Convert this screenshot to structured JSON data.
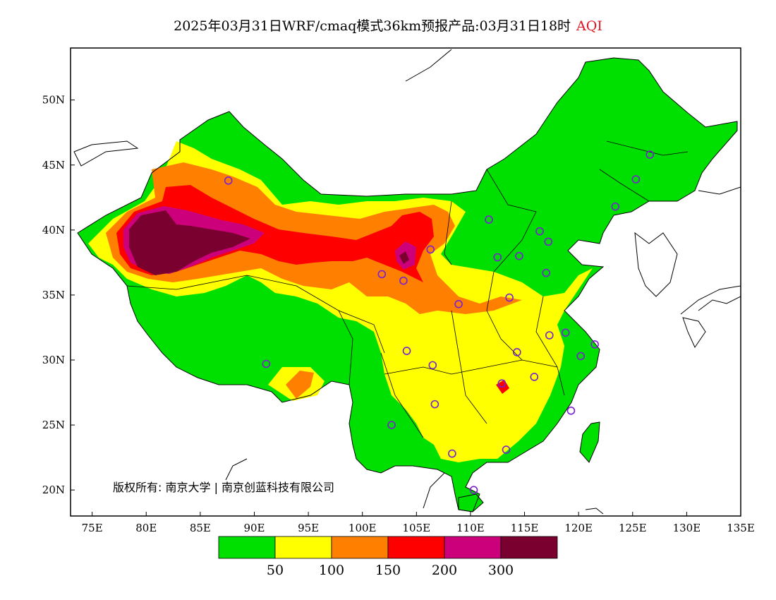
{
  "title": {
    "main": "2025年03月31日WRF/cmaq模式36km预报产品:03月31日18时",
    "variable": "AQI"
  },
  "map": {
    "lon_range": [
      73,
      135
    ],
    "lat_range": [
      18,
      54
    ],
    "lon_ticks": [
      "75E",
      "80E",
      "85E",
      "90E",
      "95E",
      "100E",
      "105E",
      "110E",
      "115E",
      "120E",
      "125E",
      "130E",
      "135E"
    ],
    "lat_ticks": [
      "20N",
      "25N",
      "30N",
      "35N",
      "40N",
      "45N",
      "50N"
    ],
    "copyright": "版权所有: 南京大学 | 南京创蓝科技有限公司"
  },
  "colorbar": {
    "colors": [
      "#00e000",
      "#ffff00",
      "#ff8000",
      "#ff0000",
      "#cc007a",
      "#7a0030"
    ],
    "labels": [
      "50",
      "100",
      "150",
      "200",
      "300"
    ]
  },
  "stations": [
    {
      "lon": 126.6,
      "lat": 45.8
    },
    {
      "lon": 125.3,
      "lat": 43.9
    },
    {
      "lon": 123.4,
      "lat": 41.8
    },
    {
      "lon": 87.6,
      "lat": 43.8
    },
    {
      "lon": 111.7,
      "lat": 40.8
    },
    {
      "lon": 116.4,
      "lat": 39.9
    },
    {
      "lon": 117.2,
      "lat": 39.1
    },
    {
      "lon": 106.3,
      "lat": 38.5
    },
    {
      "lon": 114.5,
      "lat": 38.0
    },
    {
      "lon": 112.5,
      "lat": 37.9
    },
    {
      "lon": 117.0,
      "lat": 36.7
    },
    {
      "lon": 101.8,
      "lat": 36.6
    },
    {
      "lon": 103.8,
      "lat": 36.1
    },
    {
      "lon": 108.9,
      "lat": 34.3
    },
    {
      "lon": 113.6,
      "lat": 34.8
    },
    {
      "lon": 117.3,
      "lat": 31.9
    },
    {
      "lon": 118.8,
      "lat": 32.1
    },
    {
      "lon": 121.5,
      "lat": 31.2
    },
    {
      "lon": 120.2,
      "lat": 30.3
    },
    {
      "lon": 114.3,
      "lat": 30.6
    },
    {
      "lon": 104.1,
      "lat": 30.7
    },
    {
      "lon": 106.5,
      "lat": 29.6
    },
    {
      "lon": 91.1,
      "lat": 29.7
    },
    {
      "lon": 115.9,
      "lat": 28.7
    },
    {
      "lon": 112.9,
      "lat": 28.2
    },
    {
      "lon": 106.7,
      "lat": 26.6
    },
    {
      "lon": 119.3,
      "lat": 26.1
    },
    {
      "lon": 102.7,
      "lat": 25.0
    },
    {
      "lon": 113.3,
      "lat": 23.1
    },
    {
      "lon": 108.3,
      "lat": 22.8
    },
    {
      "lon": 110.3,
      "lat": 20.0
    }
  ]
}
